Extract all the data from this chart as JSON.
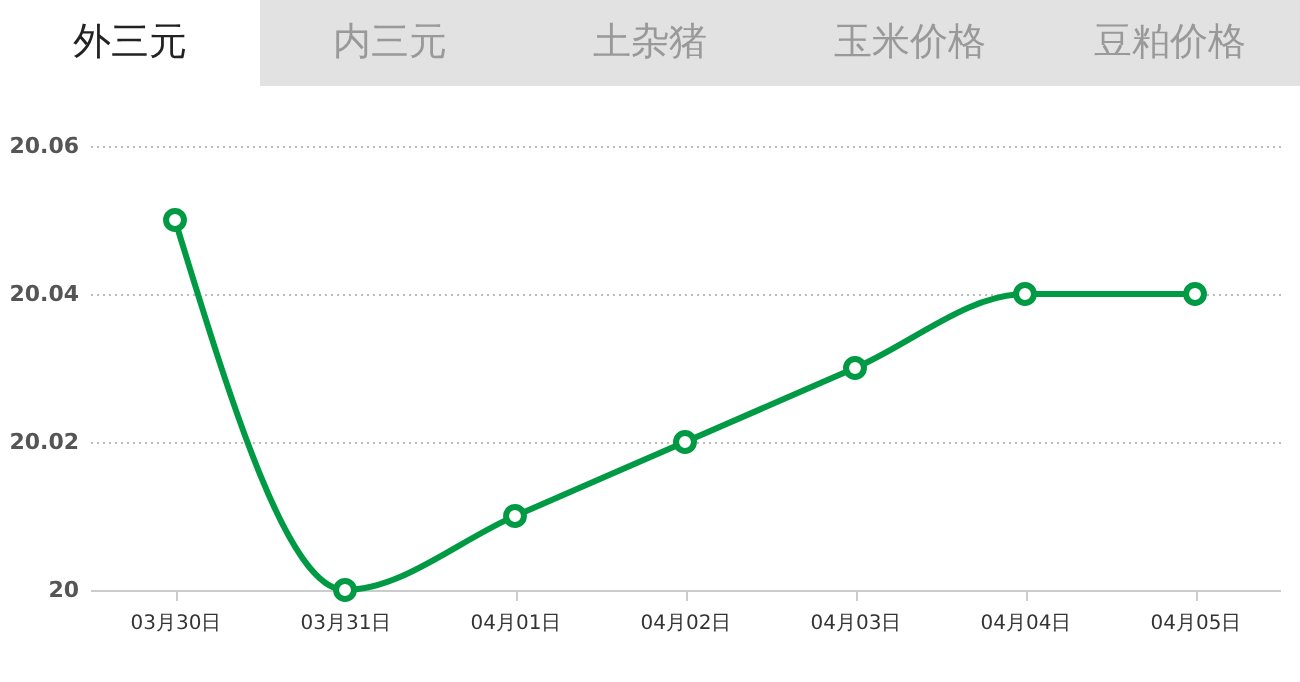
{
  "chart_data": {
    "type": "line",
    "annotations": [
      "外三元",
      "内三元",
      "土杂猪",
      "玉米价格",
      "豆粕价格"
    ],
    "categories": [
      "03月30日",
      "03月31日",
      "04月01日",
      "04月02日",
      "04月03日",
      "04月04日",
      "04月05日"
    ],
    "series": [
      {
        "color": "#009944",
        "values": [
          20.05,
          20,
          20.01,
          20.02,
          20.03,
          20.04,
          20.04
        ]
      }
    ],
    "ylim": [
      20,
      20.06
    ],
    "yticks": [
      20,
      {
        "value": 20.02,
        "label": "20.02"
      },
      {
        "value": 20.04,
        "label": "20.04"
      },
      {
        "value": 20.06,
        "label": "20.06"
      }
    ],
    "grid": "y",
    "marker": "circle",
    "line_style": "solid"
  }
}
